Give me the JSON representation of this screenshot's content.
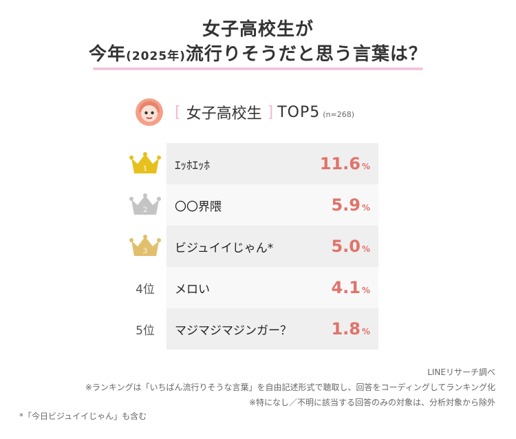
{
  "title": {
    "line1": "女子高校生が",
    "line2_pre": "今年",
    "line2_paren": "(2025年)",
    "line2_post": "流行りそうだと思う言葉は？"
  },
  "subheader": {
    "bracket_left": "[",
    "label": "女子高校生",
    "bracket_right": "]",
    "top": "TOP5",
    "n": "(n=268)"
  },
  "colors": {
    "accent": "#e0736b",
    "pink": "#f2c6dc",
    "gold": "#e6c11e",
    "silver": "#c4c4c4",
    "bronze": "#e2bf6c"
  },
  "chart_data": {
    "type": "table",
    "unit": "%",
    "rows": [
      {
        "rank": "1",
        "rank_label": "",
        "rank_icon": "gold-crown-icon",
        "label": "ｴｯﾎｴｯﾎ",
        "value": 11.6,
        "value_text": "11.6"
      },
      {
        "rank": "2",
        "rank_label": "",
        "rank_icon": "silver-crown-icon",
        "label": "〇〇界隈",
        "value": 5.9,
        "value_text": "5.9"
      },
      {
        "rank": "3",
        "rank_label": "",
        "rank_icon": "bronze-crown-icon",
        "label": "ビジュイイじゃん*",
        "value": 5.0,
        "value_text": "5.0"
      },
      {
        "rank": "4",
        "rank_label": "4位",
        "rank_icon": "",
        "label": "メロい",
        "value": 4.1,
        "value_text": "4.1"
      },
      {
        "rank": "5",
        "rank_label": "5位",
        "rank_icon": "",
        "label": "マジマジマジンガー？",
        "value": 1.8,
        "value_text": "1.8"
      }
    ]
  },
  "notes": {
    "source": "LINEリサーチ調べ",
    "note1": "※ランキングは「いちばん流行りそうな言葉」を自由記述形式で聴取し、回答をコーディングしてランキング化",
    "note2": "※特になし／不明に該当する回答のみの対象は、分析対象から除外",
    "footnote": "*「今日ビジュイイじゃん」も含む"
  }
}
